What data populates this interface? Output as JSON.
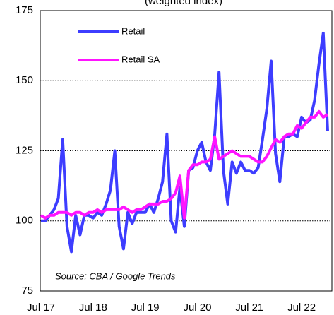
{
  "chart_data": {
    "type": "line",
    "subtitle": "(weighted index)",
    "categories": [
      "Jul 17",
      null,
      null,
      null,
      null,
      null,
      null,
      null,
      null,
      null,
      null,
      null,
      "Jul 18",
      null,
      null,
      null,
      null,
      null,
      null,
      null,
      null,
      null,
      null,
      null,
      "Jul 19",
      null,
      null,
      null,
      null,
      null,
      null,
      null,
      null,
      null,
      null,
      null,
      "Jul 20",
      null,
      null,
      null,
      null,
      null,
      null,
      null,
      null,
      null,
      null,
      null,
      "Jul 21",
      null,
      null,
      null,
      null,
      null,
      null,
      null,
      null,
      null,
      null,
      null,
      "Jul 22",
      null,
      null,
      null,
      null,
      null,
      null
    ],
    "series": [
      {
        "name": "Retail",
        "color": "#3d3dff",
        "values": [
          100,
          100,
          102,
          104,
          108,
          129,
          98,
          89,
          102,
          95,
          102,
          102,
          101,
          103,
          102,
          106,
          111,
          125,
          98,
          90,
          103,
          99,
          103,
          103,
          103,
          106,
          103,
          108,
          114,
          131,
          100,
          96,
          112,
          98,
          118,
          119,
          125,
          128,
          121,
          118,
          131,
          153,
          118,
          106,
          121,
          117,
          121,
          118,
          118,
          117,
          119,
          129,
          140,
          157,
          124,
          114,
          130,
          130,
          131,
          130,
          137,
          135,
          136,
          143,
          156,
          167,
          132
        ]
      },
      {
        "name": "Retail SA",
        "color": "#ff14ff",
        "values": [
          102,
          101,
          102,
          102,
          103,
          103,
          103,
          102,
          103,
          103,
          102,
          103,
          103,
          104,
          103,
          104,
          104,
          104,
          104,
          105,
          104,
          103,
          104,
          104,
          105,
          106,
          106,
          106,
          107,
          107,
          108,
          110,
          116,
          101,
          118,
          120,
          120,
          121,
          121,
          122,
          130,
          122,
          123,
          124,
          125,
          124,
          123,
          123,
          123,
          122,
          121,
          121,
          123,
          126,
          129,
          128,
          130,
          131,
          131,
          134,
          133,
          135,
          137,
          137,
          139,
          137,
          138
        ]
      }
    ],
    "ylim": [
      75,
      175
    ],
    "yticks": [
      75,
      100,
      125,
      150,
      175
    ],
    "grid": true,
    "legend": "upper left",
    "annotation": "Source: CBA / Google Trends"
  }
}
